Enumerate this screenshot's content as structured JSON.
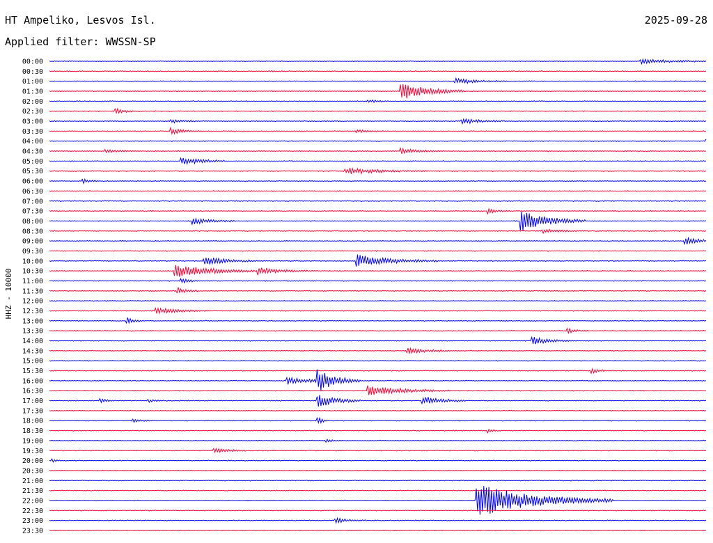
{
  "header": {
    "station": "HT Ampeliko, Lesvos Isl.",
    "date": "2025-09-28",
    "filter_label": "Applied filter: WWSSN-SP"
  },
  "chart_data": {
    "type": "helicorder",
    "ylabel": "HHZ - 10000",
    "colors": {
      "odd": "#0000ff",
      "even": "#ff0033"
    },
    "rows": [
      "00:00",
      "00:30",
      "01:00",
      "01:30",
      "02:00",
      "02:30",
      "03:00",
      "03:30",
      "04:00",
      "04:30",
      "05:00",
      "05:30",
      "06:00",
      "06:30",
      "07:00",
      "07:30",
      "08:00",
      "08:30",
      "09:00",
      "09:30",
      "10:00",
      "10:30",
      "11:00",
      "11:30",
      "12:00",
      "12:30",
      "13:00",
      "13:30",
      "14:00",
      "14:30",
      "15:00",
      "15:30",
      "16:00",
      "16:30",
      "17:00",
      "17:30",
      "18:00",
      "18:30",
      "19:00",
      "19:30",
      "20:00",
      "20:30",
      "21:00",
      "21:30",
      "22:00",
      "22:30",
      "23:00",
      "23:30"
    ],
    "row_duration_min": 30,
    "events": [
      {
        "row": 0,
        "t": 27.0,
        "amp": 0.5,
        "dur": 1.2
      },
      {
        "row": 1,
        "t": 10.0,
        "amp": 0.15,
        "dur": 0.3
      },
      {
        "row": 2,
        "t": 18.5,
        "amp": 0.5,
        "dur": 1.0
      },
      {
        "row": 3,
        "t": 16.0,
        "amp": 1.6,
        "dur": 1.2
      },
      {
        "row": 4,
        "t": 14.5,
        "amp": 0.3,
        "dur": 0.4
      },
      {
        "row": 5,
        "t": 3.0,
        "amp": 0.5,
        "dur": 0.4
      },
      {
        "row": 6,
        "t": 5.5,
        "amp": 0.4,
        "dur": 0.5
      },
      {
        "row": 6,
        "t": 18.8,
        "amp": 0.5,
        "dur": 0.8
      },
      {
        "row": 7,
        "t": 5.5,
        "amp": 0.6,
        "dur": 0.6
      },
      {
        "row": 7,
        "t": 14.0,
        "amp": 0.3,
        "dur": 0.6
      },
      {
        "row": 8,
        "t": 30.0,
        "amp": 0.4,
        "dur": 0.6
      },
      {
        "row": 9,
        "t": 2.5,
        "amp": 0.3,
        "dur": 0.6
      },
      {
        "row": 9,
        "t": 16.0,
        "amp": 0.5,
        "dur": 0.8
      },
      {
        "row": 10,
        "t": 6.0,
        "amp": 0.9,
        "dur": 0.8
      },
      {
        "row": 11,
        "t": 13.5,
        "amp": 0.6,
        "dur": 1.5
      },
      {
        "row": 12,
        "t": 1.5,
        "amp": 0.4,
        "dur": 0.3
      },
      {
        "row": 15,
        "t": 20.0,
        "amp": 0.5,
        "dur": 0.4
      },
      {
        "row": 16,
        "t": 6.5,
        "amp": 0.6,
        "dur": 0.8
      },
      {
        "row": 16,
        "t": 21.5,
        "amp": 2.0,
        "dur": 1.2
      },
      {
        "row": 17,
        "t": 22.5,
        "amp": 0.4,
        "dur": 0.8
      },
      {
        "row": 18,
        "t": 29.0,
        "amp": 0.8,
        "dur": 0.6
      },
      {
        "row": 20,
        "t": 7.0,
        "amp": 0.8,
        "dur": 1.0
      },
      {
        "row": 20,
        "t": 14.0,
        "amp": 1.2,
        "dur": 1.5
      },
      {
        "row": 21,
        "t": 5.7,
        "amp": 1.3,
        "dur": 1.5
      },
      {
        "row": 21,
        "t": 9.5,
        "amp": 0.7,
        "dur": 1.0
      },
      {
        "row": 22,
        "t": 6.0,
        "amp": 0.5,
        "dur": 0.4
      },
      {
        "row": 23,
        "t": 5.8,
        "amp": 0.8,
        "dur": 0.4
      },
      {
        "row": 25,
        "t": 4.8,
        "amp": 0.6,
        "dur": 1.0
      },
      {
        "row": 26,
        "t": 3.5,
        "amp": 0.7,
        "dur": 0.3
      },
      {
        "row": 27,
        "t": 23.6,
        "amp": 0.5,
        "dur": 0.4
      },
      {
        "row": 28,
        "t": 22.0,
        "amp": 0.7,
        "dur": 0.8
      },
      {
        "row": 29,
        "t": 16.3,
        "amp": 0.6,
        "dur": 0.8
      },
      {
        "row": 31,
        "t": 24.7,
        "amp": 0.6,
        "dur": 0.3
      },
      {
        "row": 32,
        "t": 10.8,
        "amp": 0.7,
        "dur": 1.2
      },
      {
        "row": 32,
        "t": 12.2,
        "amp": 2.0,
        "dur": 0.8
      },
      {
        "row": 33,
        "t": 14.5,
        "amp": 0.9,
        "dur": 1.5
      },
      {
        "row": 34,
        "t": 2.3,
        "amp": 0.4,
        "dur": 0.3
      },
      {
        "row": 34,
        "t": 4.5,
        "amp": 0.3,
        "dur": 0.3
      },
      {
        "row": 34,
        "t": 12.2,
        "amp": 1.4,
        "dur": 0.8
      },
      {
        "row": 34,
        "t": 17.0,
        "amp": 0.9,
        "dur": 0.8
      },
      {
        "row": 36,
        "t": 3.8,
        "amp": 0.3,
        "dur": 0.4
      },
      {
        "row": 36,
        "t": 12.2,
        "amp": 1.0,
        "dur": 0.2
      },
      {
        "row": 37,
        "t": 20.0,
        "amp": 0.4,
        "dur": 0.2
      },
      {
        "row": 38,
        "t": 12.6,
        "amp": 0.3,
        "dur": 0.3
      },
      {
        "row": 39,
        "t": 7.5,
        "amp": 0.5,
        "dur": 0.6
      },
      {
        "row": 40,
        "t": 0.1,
        "amp": 0.3,
        "dur": 0.2
      },
      {
        "row": 44,
        "t": 19.5,
        "amp": 3.0,
        "dur": 2.5
      },
      {
        "row": 46,
        "t": 13.0,
        "amp": 0.5,
        "dur": 0.6
      }
    ]
  }
}
